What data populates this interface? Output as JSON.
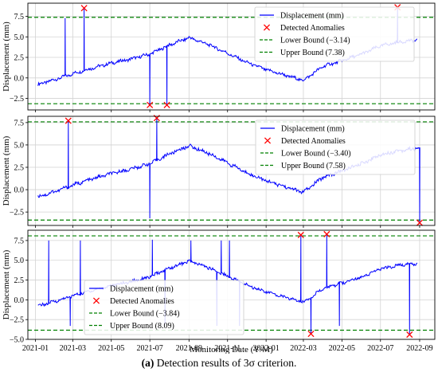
{
  "caption": {
    "label": "(a)",
    "text": "Detection results of 3σ criterion."
  },
  "colors": {
    "series_line": "#0000ff",
    "anomaly_marker": "#ff0000",
    "bound_line": "#008000",
    "grid": "#d3d3d3"
  },
  "chart_data": [
    {
      "type": "line",
      "ylabel": "Displacement (mm)",
      "xlabel": "",
      "xlim": [
        "2020-12-20",
        "2022-09-25"
      ],
      "ylim": [
        -3.9,
        9.1
      ],
      "yticks": [
        -2.5,
        0.0,
        2.5,
        5.0,
        7.5
      ],
      "ytick_labels": [
        "−2.5",
        "0.0",
        "2.5",
        "5.0",
        "7.5"
      ],
      "grid": true,
      "legend_position": "top-right",
      "series": [
        {
          "name": "Displacement (mm)",
          "style": "line",
          "x": [
            "2021-01-05",
            "2021-02-01",
            "2021-03-05",
            "2021-04-01",
            "2021-05-01",
            "2021-06-01",
            "2021-07-01",
            "2021-08-01",
            "2021-09-01",
            "2021-10-01",
            "2021-11-01",
            "2021-12-01",
            "2022-01-01",
            "2022-02-01",
            "2022-03-01",
            "2022-04-01",
            "2022-05-01",
            "2022-06-01",
            "2022-07-01",
            "2022-08-01",
            "2022-08-28"
          ],
          "y": [
            -0.8,
            -0.2,
            0.6,
            1.2,
            1.8,
            2.3,
            2.9,
            4.0,
            4.9,
            4.1,
            3.0,
            1.9,
            1.0,
            0.3,
            -0.3,
            1.4,
            2.1,
            2.9,
            3.9,
            4.4,
            4.6
          ]
        },
        {
          "name": "Detected Anomalies",
          "style": "marker",
          "x": [
            "2021-03-19",
            "2021-07-01",
            "2021-07-28",
            "2022-07-28"
          ],
          "y": [
            8.5,
            -3.3,
            -3.3,
            8.6
          ]
        },
        {
          "name": "Lower Bound (−3.14)",
          "style": "hline",
          "y": -3.14
        },
        {
          "name": "Upper Bound (7.38)",
          "style": "hline",
          "y": 7.38
        }
      ]
    },
    {
      "type": "line",
      "ylabel": "Displacement (mm)",
      "xlabel": "",
      "xlim": [
        "2020-12-20",
        "2022-09-25"
      ],
      "ylim": [
        -4.0,
        8.2
      ],
      "yticks": [
        -2.5,
        0.0,
        2.5,
        5.0,
        7.5
      ],
      "ytick_labels": [
        "−2.5",
        "0.0",
        "2.5",
        "5.0",
        "7.5"
      ],
      "grid": true,
      "legend_position": "top-right",
      "series": [
        {
          "name": "Displacement (mm)",
          "style": "line",
          "x": [
            "2021-01-05",
            "2021-02-01",
            "2021-03-05",
            "2021-04-01",
            "2021-05-01",
            "2021-06-01",
            "2021-07-01",
            "2021-08-01",
            "2021-09-01",
            "2021-10-01",
            "2021-11-01",
            "2021-12-01",
            "2022-01-01",
            "2022-02-01",
            "2022-03-01",
            "2022-04-01",
            "2022-05-01",
            "2022-06-01",
            "2022-07-01",
            "2022-08-01",
            "2022-08-28"
          ],
          "y": [
            -0.8,
            -0.2,
            0.6,
            1.2,
            1.8,
            2.3,
            2.9,
            4.0,
            4.9,
            4.1,
            3.0,
            1.9,
            1.0,
            0.3,
            -0.3,
            1.4,
            2.1,
            2.9,
            3.9,
            4.4,
            4.6
          ]
        },
        {
          "name": "Detected Anomalies",
          "style": "marker",
          "x": [
            "2021-02-22",
            "2021-07-12",
            "2022-09-01"
          ],
          "y": [
            7.7,
            8.0,
            -3.7
          ]
        },
        {
          "name": "Lower Bound (−3.40)",
          "style": "hline",
          "y": -3.4
        },
        {
          "name": "Upper Bound (7.58)",
          "style": "hline",
          "y": 7.58
        }
      ]
    },
    {
      "type": "line",
      "ylabel": "Displacement (mm)",
      "xlabel": "Monitoring Date (Y/M)",
      "xlim": [
        "2020-12-20",
        "2022-09-25"
      ],
      "ylim": [
        -5.0,
        8.8
      ],
      "yticks": [
        -5.0,
        -2.5,
        0.0,
        2.5,
        5.0,
        7.5
      ],
      "ytick_labels": [
        "−5.0",
        "−2.5",
        "0.0",
        "2.5",
        "5.0",
        "7.5"
      ],
      "xticks": [
        "2021-01",
        "2021-03",
        "2021-05",
        "2021-07",
        "2021-09",
        "2021-11",
        "2022-01",
        "2022-03",
        "2022-05",
        "2022-07",
        "2022-09"
      ],
      "grid": true,
      "legend_position": "center-left",
      "series": [
        {
          "name": "Displacement (mm)",
          "style": "line",
          "x": [
            "2021-01-05",
            "2021-02-01",
            "2021-03-05",
            "2021-04-01",
            "2021-05-01",
            "2021-06-01",
            "2021-07-01",
            "2021-08-01",
            "2021-09-01",
            "2021-10-01",
            "2021-11-01",
            "2021-12-01",
            "2022-01-01",
            "2022-02-01",
            "2022-03-01",
            "2022-04-01",
            "2022-05-01",
            "2022-06-01",
            "2022-07-01",
            "2022-08-01",
            "2022-08-28"
          ],
          "y": [
            -0.8,
            -0.2,
            0.6,
            1.2,
            1.8,
            2.3,
            2.9,
            4.0,
            4.9,
            4.1,
            3.0,
            1.9,
            1.0,
            0.3,
            -0.3,
            1.4,
            2.1,
            2.9,
            3.9,
            4.4,
            4.6
          ]
        },
        {
          "name": "Detected Anomalies",
          "style": "marker",
          "x": [
            "2022-02-25",
            "2022-03-13",
            "2022-04-07",
            "2022-08-16"
          ],
          "y": [
            8.2,
            -4.3,
            8.3,
            -4.4
          ]
        },
        {
          "name": "Lower Bound (−3.84)",
          "style": "hline",
          "y": -3.84
        },
        {
          "name": "Upper Bound (8.09)",
          "style": "hline",
          "y": 8.09
        }
      ]
    }
  ]
}
